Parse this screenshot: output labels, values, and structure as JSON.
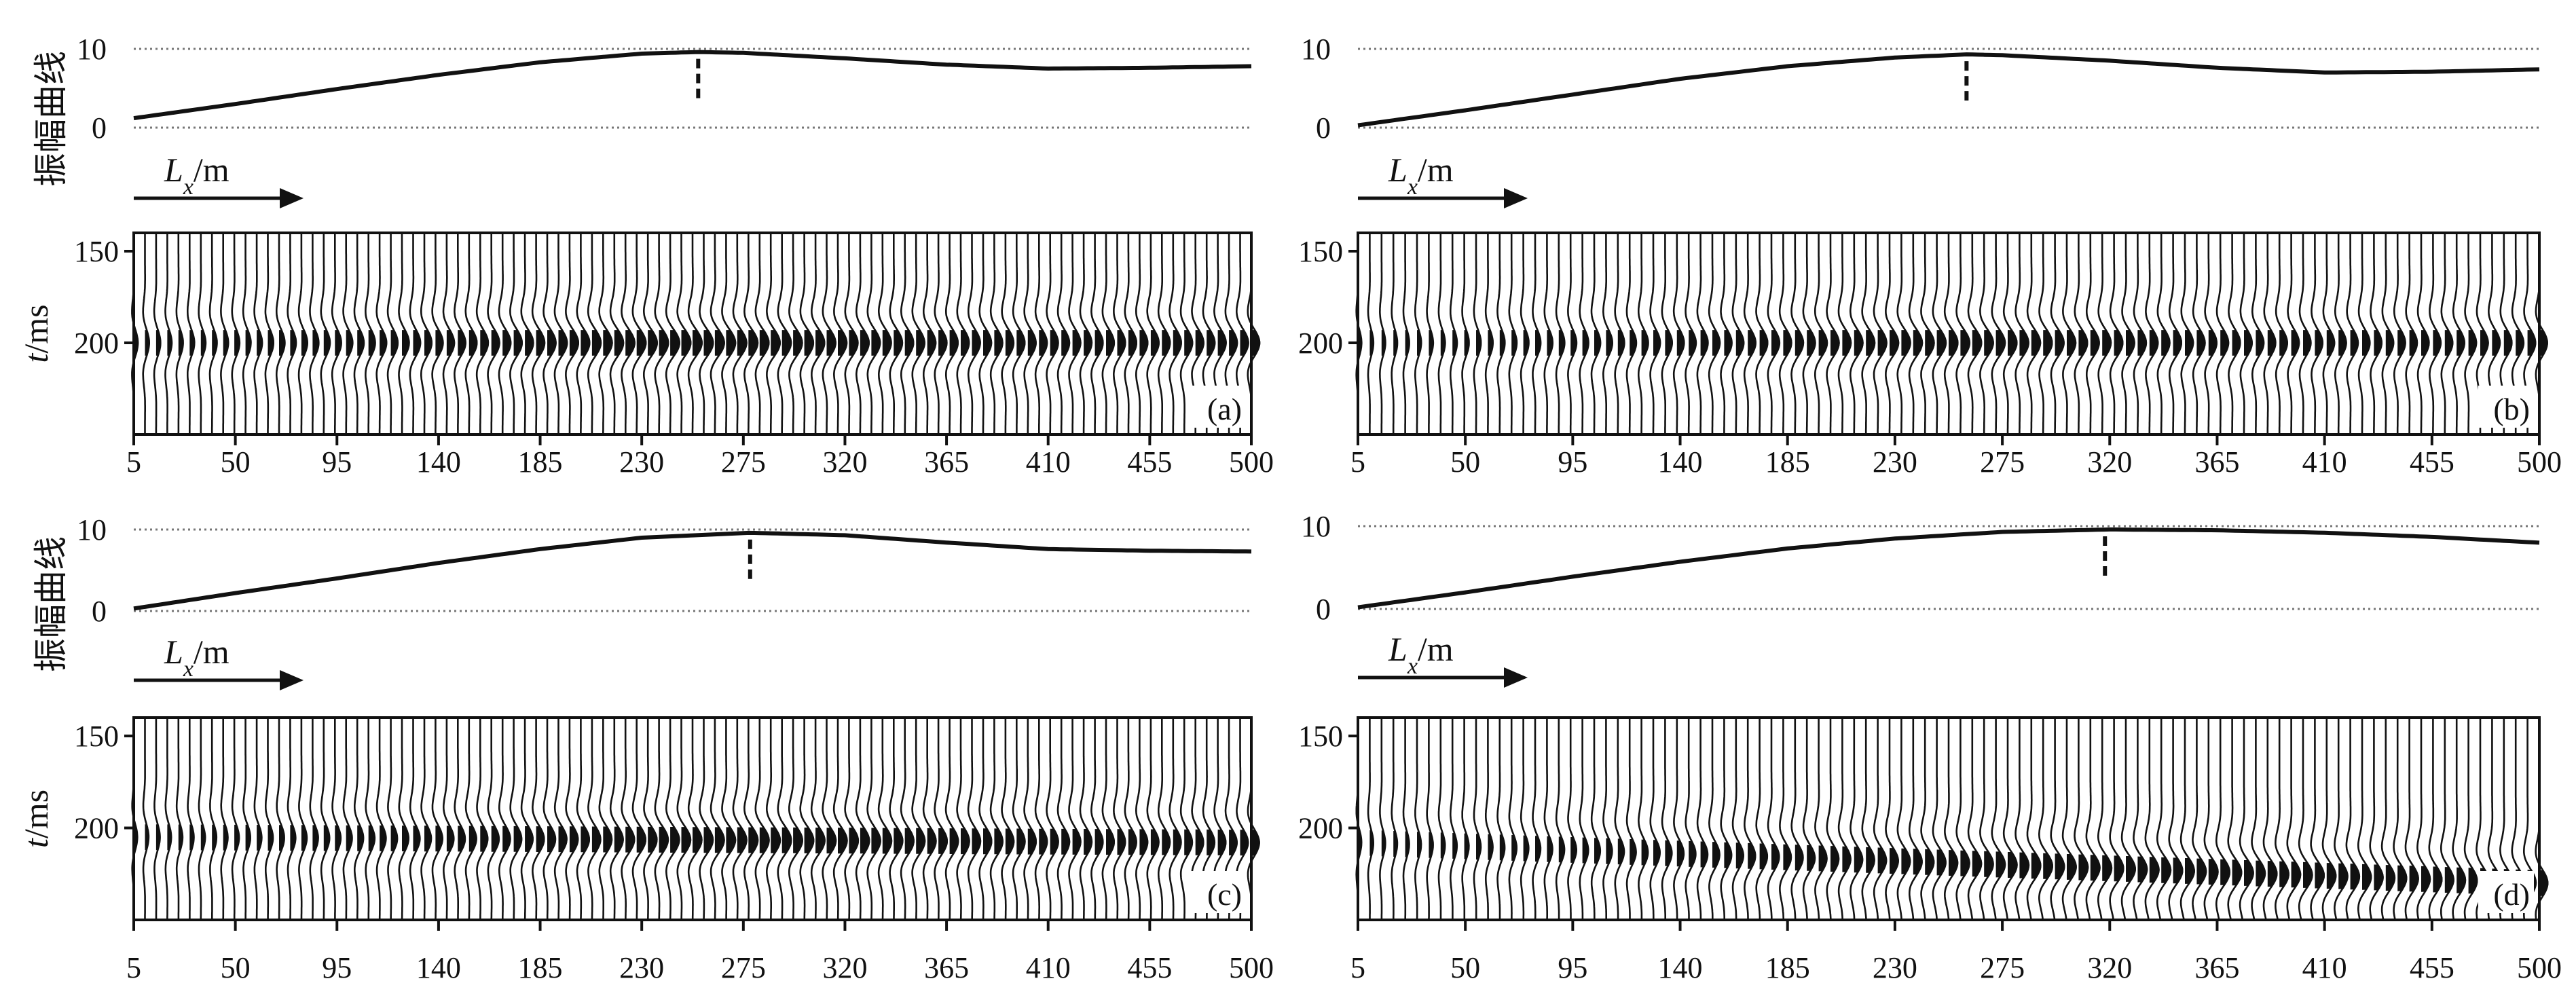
{
  "figure": {
    "amplitude_label": "振幅曲线",
    "time_label_italic": "t",
    "time_label_unit": "/ms",
    "lx_label_italic": "L",
    "lx_label_sub": "x",
    "lx_label_unit": "/m"
  },
  "chart_data": [
    {
      "type": "line",
      "panel": "(a)",
      "amplitude_curve": {
        "x": [
          5,
          50,
          95,
          140,
          185,
          230,
          255,
          275,
          320,
          365,
          410,
          455,
          500
        ],
        "y": [
          1.2,
          3.0,
          4.9,
          6.7,
          8.3,
          9.4,
          9.6,
          9.5,
          8.8,
          8.0,
          7.5,
          7.6,
          7.8
        ],
        "yticks": [
          0,
          10
        ],
        "ylim": [
          0,
          10
        ],
        "grid": "dotted at 0 and 10",
        "peak_marker_x": 255
      },
      "seismic_section": {
        "type": "wiggle",
        "x_ticks": [
          5,
          50,
          95,
          140,
          185,
          230,
          275,
          320,
          365,
          410,
          455,
          500
        ],
        "xlim": [
          5,
          500
        ],
        "time_ticks": [
          150,
          200
        ],
        "time_range": [
          140,
          250
        ],
        "event_time_start": 200,
        "event_time_end": 200
      }
    },
    {
      "type": "line",
      "panel": "(b)",
      "amplitude_curve": {
        "x": [
          5,
          50,
          95,
          140,
          185,
          230,
          260,
          275,
          320,
          365,
          410,
          455,
          500
        ],
        "y": [
          0.3,
          2.2,
          4.2,
          6.2,
          7.8,
          8.9,
          9.3,
          9.2,
          8.5,
          7.6,
          7.0,
          7.1,
          7.4
        ],
        "yticks": [
          0,
          10
        ],
        "ylim": [
          0,
          10
        ],
        "grid": "dotted at 0 and 10",
        "peak_marker_x": 260
      },
      "seismic_section": {
        "type": "wiggle",
        "x_ticks": [
          5,
          50,
          95,
          140,
          185,
          230,
          275,
          320,
          365,
          410,
          455,
          500
        ],
        "xlim": [
          5,
          500
        ],
        "time_ticks": [
          150,
          200
        ],
        "time_range": [
          140,
          250
        ],
        "event_time_start": 200,
        "event_time_end": 200
      }
    },
    {
      "type": "line",
      "panel": "(c)",
      "amplitude_curve": {
        "x": [
          5,
          50,
          95,
          140,
          185,
          230,
          278,
          320,
          365,
          410,
          455,
          500
        ],
        "y": [
          0.3,
          2.2,
          4.0,
          5.9,
          7.6,
          9.0,
          9.6,
          9.3,
          8.4,
          7.6,
          7.4,
          7.3
        ],
        "yticks": [
          0,
          10
        ],
        "ylim": [
          0,
          10
        ],
        "grid": "dotted at 0 and 10",
        "peak_marker_x": 278
      },
      "seismic_section": {
        "type": "wiggle",
        "x_ticks": [
          5,
          50,
          95,
          140,
          185,
          230,
          275,
          320,
          365,
          410,
          455,
          500
        ],
        "xlim": [
          5,
          500
        ],
        "time_ticks": [
          150,
          200
        ],
        "time_range": [
          140,
          250
        ],
        "event_time_start": 205,
        "event_time_end": 208
      }
    },
    {
      "type": "line",
      "panel": "(d)",
      "amplitude_curve": {
        "x": [
          5,
          50,
          95,
          140,
          185,
          230,
          275,
          320,
          365,
          410,
          455,
          500
        ],
        "y": [
          0.2,
          2.0,
          3.9,
          5.7,
          7.3,
          8.5,
          9.3,
          9.6,
          9.5,
          9.2,
          8.7,
          8.0
        ],
        "yticks": [
          0,
          10
        ],
        "ylim": [
          0,
          10
        ],
        "grid": "dotted at 0 and 10",
        "peak_marker_x": 318
      },
      "seismic_section": {
        "type": "wiggle",
        "x_ticks": [
          5,
          50,
          95,
          140,
          185,
          230,
          275,
          320,
          365,
          410,
          455,
          500
        ],
        "xlim": [
          5,
          500
        ],
        "time_ticks": [
          150,
          200
        ],
        "time_range": [
          140,
          250
        ],
        "event_time_start": 208,
        "event_time_end": 230
      }
    }
  ]
}
